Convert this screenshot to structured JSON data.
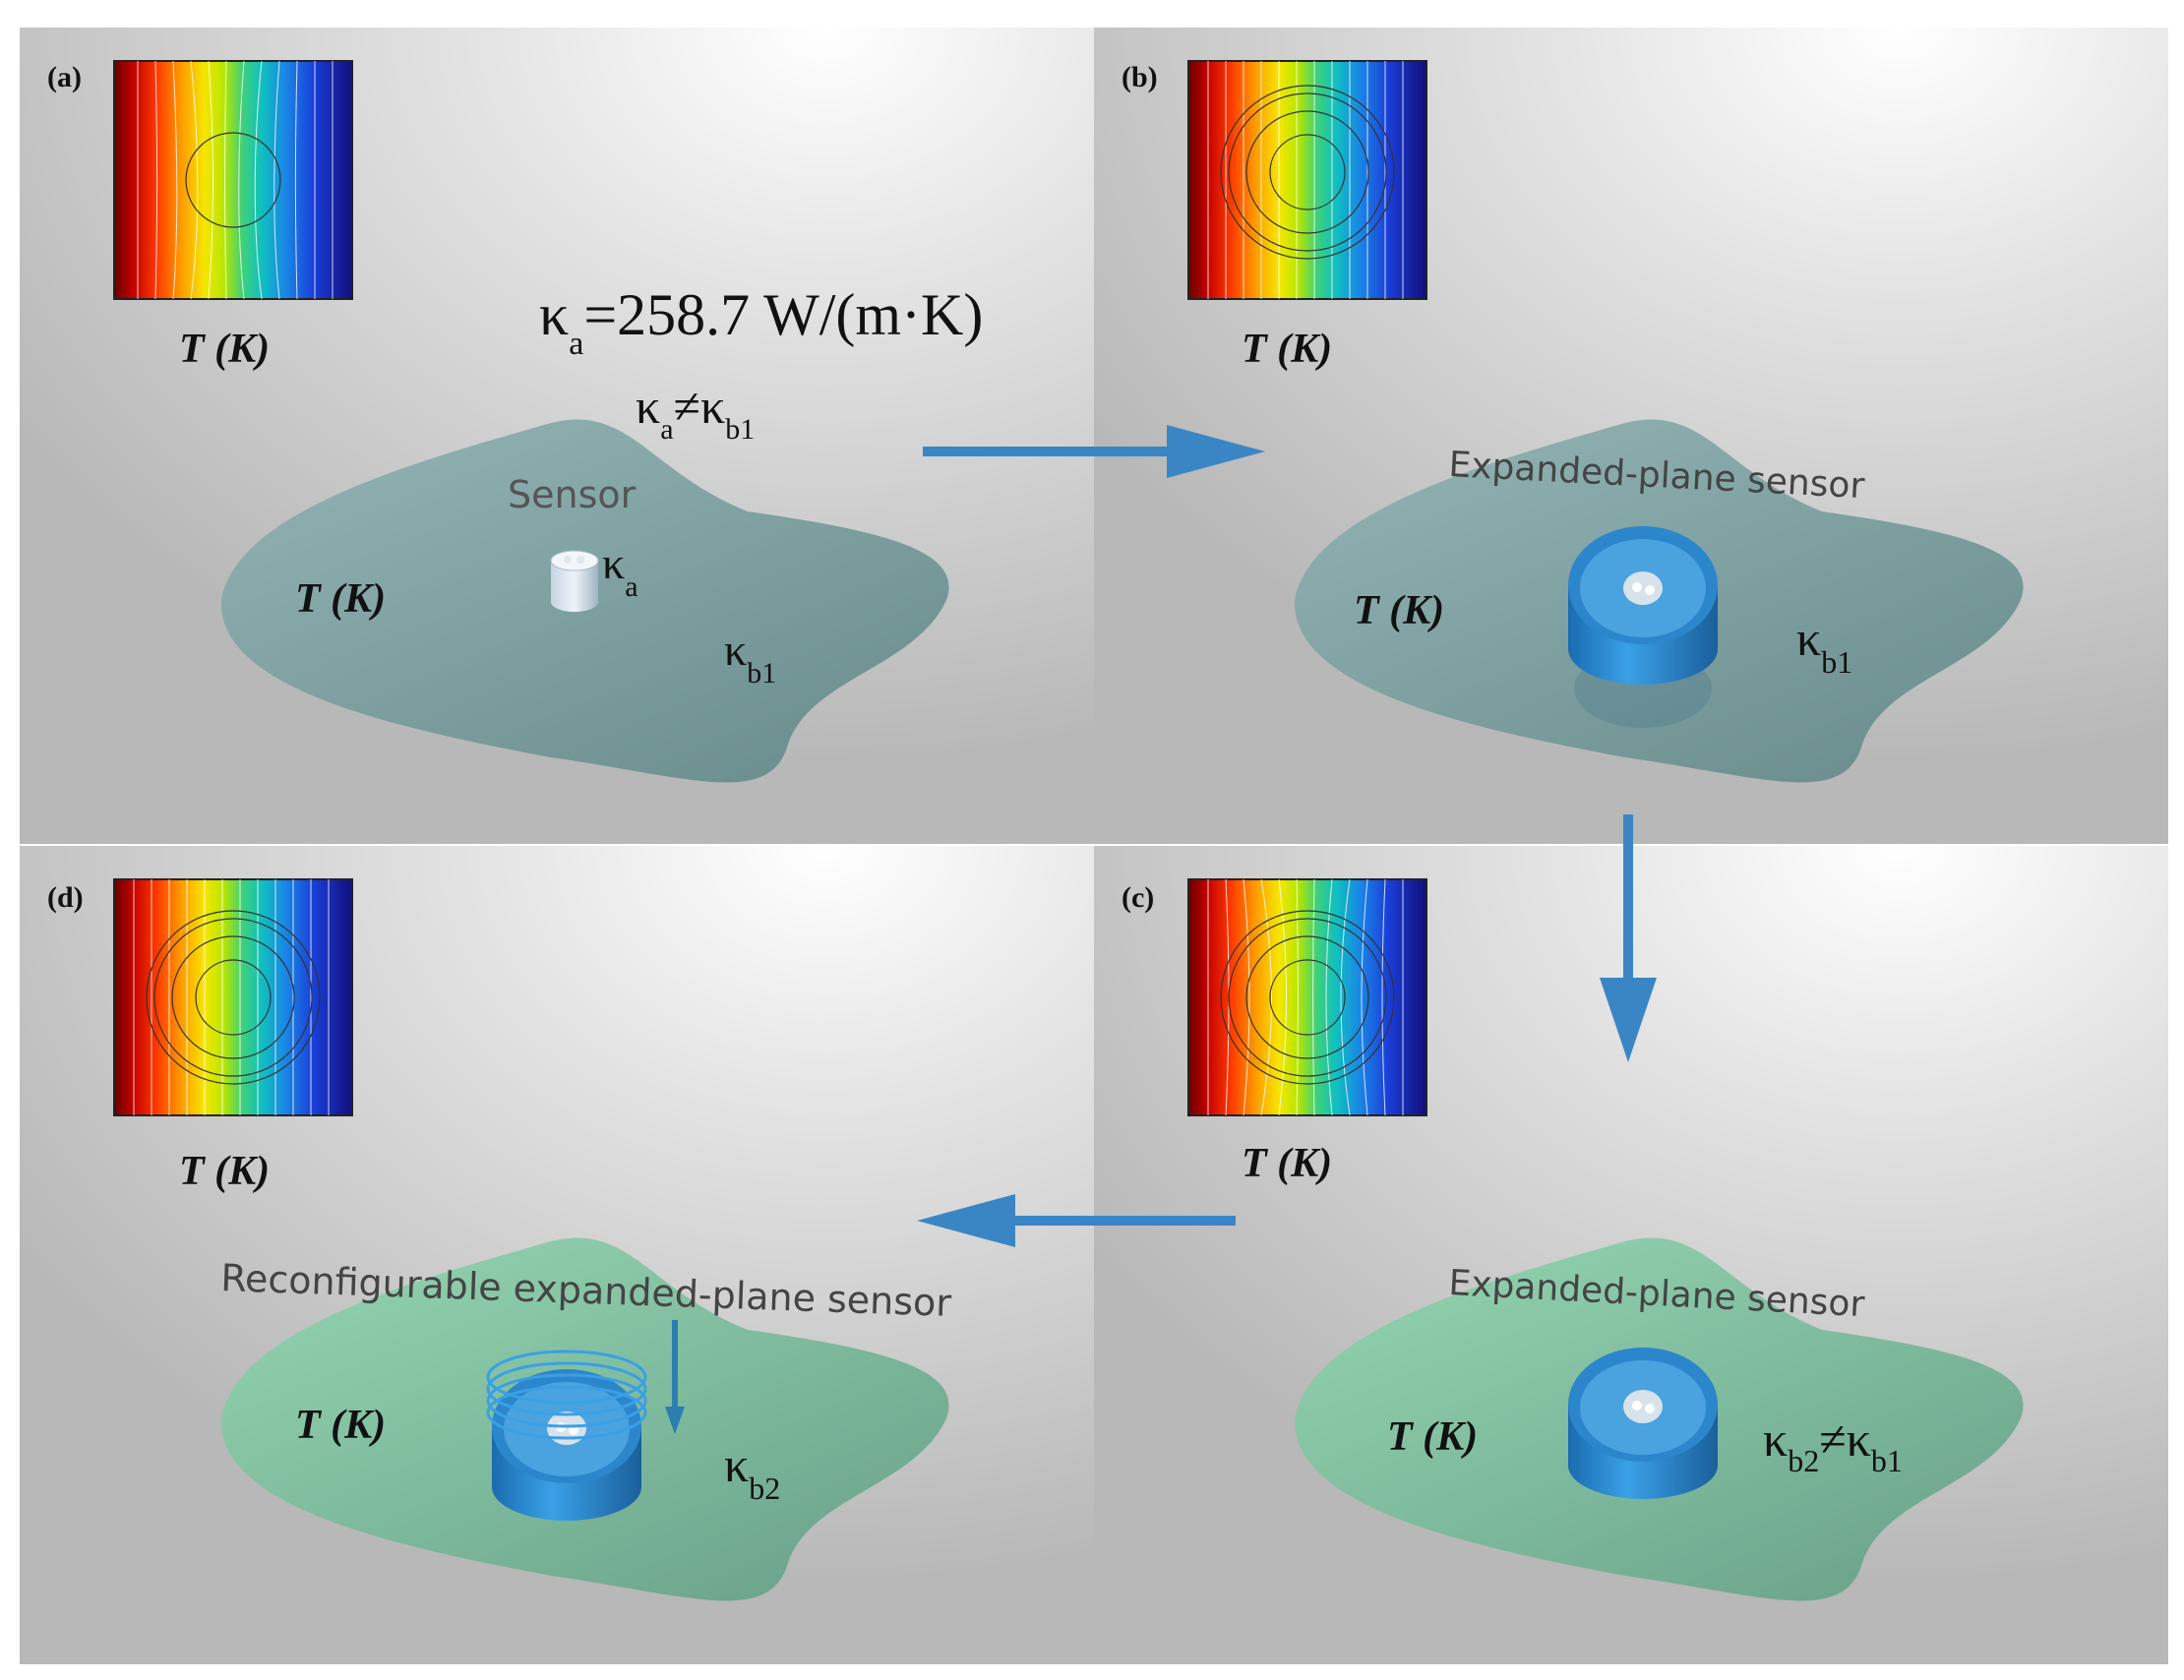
{
  "panels": {
    "a": {
      "letter": "(a)",
      "inset_label": "T (K)",
      "region_label": "T (K)",
      "sensor_label": "Sensor",
      "sensor_kappa": "κ",
      "sensor_kappa_sub": "a",
      "bg_kappa": "κ",
      "bg_kappa_sub": "b1",
      "equation_main": "κ",
      "equation_sub": "a",
      "equation_rest": "=258.7 W/(m·K)",
      "inequality": {
        "k1": "κ",
        "s1": "a",
        "neq": "≠",
        "k2": "κ",
        "s2": "b1"
      }
    },
    "b": {
      "letter": "(b)",
      "inset_label": "T (K)",
      "region_label": "T (K)",
      "sensor_label": "Expanded-plane sensor",
      "bg_kappa": "κ",
      "bg_kappa_sub": "b1"
    },
    "c": {
      "letter": "(c)",
      "inset_label": "T (K)",
      "region_label": "T (K)",
      "sensor_label": "Expanded-plane sensor",
      "inequality": {
        "k1": "κ",
        "s1": "b2",
        "neq": "≠",
        "k2": "κ",
        "s2": "b1"
      }
    },
    "d": {
      "letter": "(d)",
      "inset_label": "T (K)",
      "region_label": "T (K)",
      "sensor_label": "Reconfigurable expanded-plane sensor",
      "bg_kappa": "κ",
      "bg_kappa_sub": "b2"
    }
  },
  "colors": {
    "arrow": "#3a86c4",
    "blob_teal": "#6f9a9c",
    "blob_green": "#6fbf97",
    "sensor_blue": "#2f8fd4",
    "thermal_scale": [
      "#7a0000",
      "#d40000",
      "#ff5a00",
      "#ffb400",
      "#f4f400",
      "#9be000",
      "#2fc86a",
      "#12b5c8",
      "#1a6fe0",
      "#1b2fc8",
      "#17137a"
    ]
  }
}
